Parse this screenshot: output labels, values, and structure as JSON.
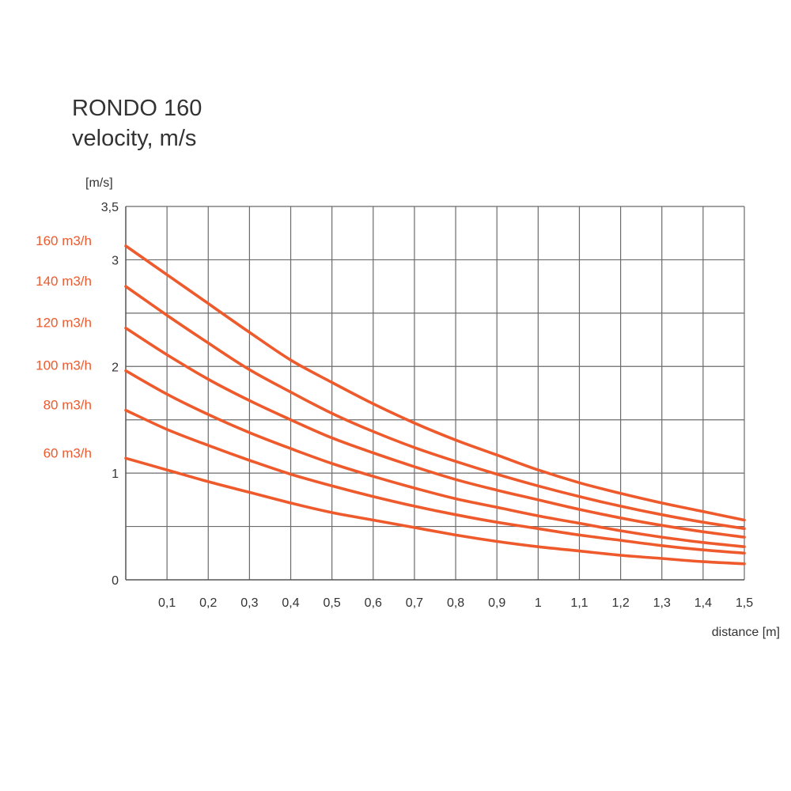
{
  "header": {
    "title": "RONDO 160",
    "subtitle": "velocity, m/s"
  },
  "chart_data": {
    "type": "line",
    "title": "RONDO 160",
    "subtitle": "velocity, m/s",
    "ylabel": "[m/s]",
    "xlabel": "distance [m]",
    "xlim": [
      0.0,
      1.5
    ],
    "ylim": [
      0,
      3.5
    ],
    "x_ticks": [
      "0,1",
      "0,2",
      "0,3",
      "0,4",
      "0,5",
      "0,6",
      "0,7",
      "0,8",
      "0,9",
      "1",
      "1,1",
      "1,2",
      "1,3",
      "1,4",
      "1,5"
    ],
    "y_ticks": [
      {
        "value": 0,
        "label": "0"
      },
      {
        "value": 1,
        "label": "1"
      },
      {
        "value": 2,
        "label": "2"
      },
      {
        "value": 3,
        "label": "3"
      },
      {
        "value": 3.5,
        "label": "3,5"
      }
    ],
    "x_grid": [
      0.1,
      0.2,
      0.3,
      0.4,
      0.5,
      0.6,
      0.7,
      0.8,
      0.9,
      1.0,
      1.1,
      1.2,
      1.3,
      1.4,
      1.5
    ],
    "y_grid": [
      0.5,
      1.0,
      1.5,
      2.0,
      2.5,
      3.0,
      3.5
    ],
    "grid": true,
    "series_color": "#ee5a2c",
    "grid_color": "#6b6b6b",
    "x": [
      0.0,
      0.1,
      0.2,
      0.3,
      0.4,
      0.5,
      0.6,
      0.7,
      0.8,
      0.9,
      1.0,
      1.1,
      1.2,
      1.3,
      1.4,
      1.5
    ],
    "series": [
      {
        "name": "160 m3/h",
        "values": [
          3.13,
          2.86,
          2.59,
          2.32,
          2.06,
          1.85,
          1.65,
          1.47,
          1.31,
          1.17,
          1.03,
          0.91,
          0.81,
          0.72,
          0.64,
          0.56
        ]
      },
      {
        "name": "140 m3/h",
        "values": [
          2.75,
          2.48,
          2.22,
          1.97,
          1.76,
          1.56,
          1.39,
          1.24,
          1.11,
          0.99,
          0.88,
          0.78,
          0.69,
          0.61,
          0.54,
          0.48
        ]
      },
      {
        "name": "120 m3/h",
        "values": [
          2.36,
          2.11,
          1.88,
          1.68,
          1.5,
          1.33,
          1.19,
          1.06,
          0.94,
          0.84,
          0.75,
          0.66,
          0.58,
          0.51,
          0.45,
          0.4
        ]
      },
      {
        "name": "100 m3/h",
        "values": [
          1.96,
          1.74,
          1.55,
          1.38,
          1.23,
          1.09,
          0.97,
          0.86,
          0.76,
          0.68,
          0.6,
          0.53,
          0.46,
          0.4,
          0.35,
          0.31
        ]
      },
      {
        "name": "80 m3/h",
        "values": [
          1.59,
          1.41,
          1.26,
          1.12,
          0.99,
          0.88,
          0.78,
          0.69,
          0.61,
          0.54,
          0.48,
          0.42,
          0.37,
          0.32,
          0.28,
          0.25
        ]
      },
      {
        "name": "60 m3/h",
        "values": [
          1.14,
          1.03,
          0.92,
          0.82,
          0.72,
          0.63,
          0.56,
          0.49,
          0.42,
          0.36,
          0.31,
          0.27,
          0.23,
          0.2,
          0.17,
          0.15
        ]
      }
    ]
  }
}
